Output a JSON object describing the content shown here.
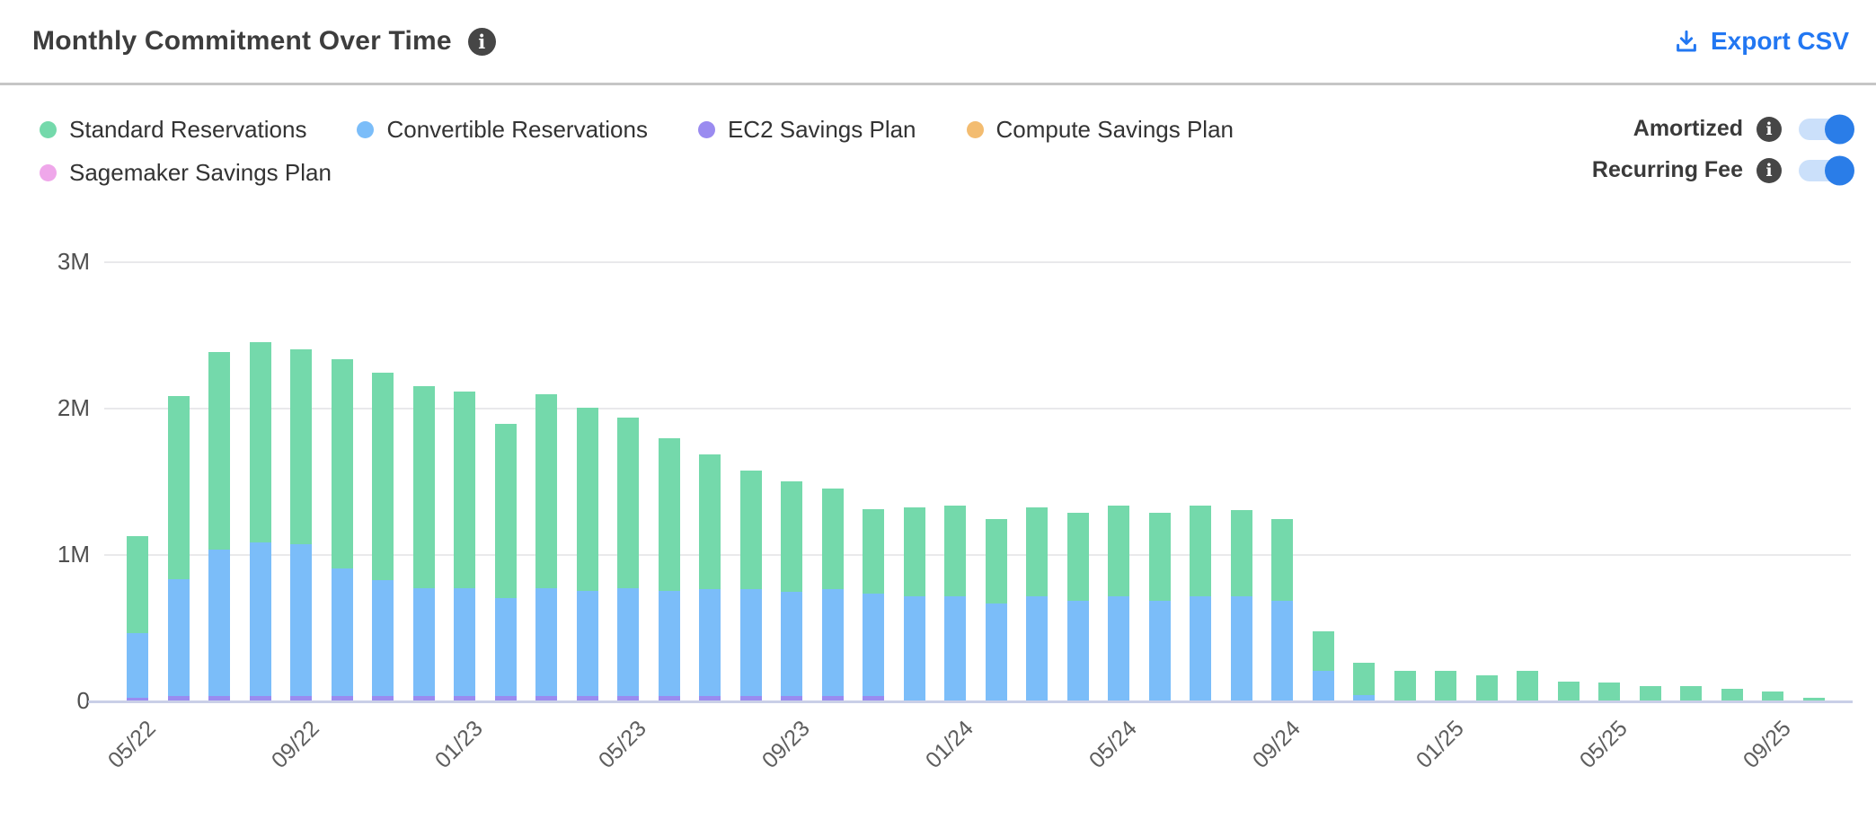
{
  "header": {
    "title": "Monthly Commitment Over Time",
    "export_label": "Export CSV"
  },
  "toggles": [
    {
      "label": "Amortized",
      "state": "on"
    },
    {
      "label": "Recurring Fee",
      "state": "on"
    }
  ],
  "colors": {
    "accent_blue": "#2277f2",
    "toggle_knob": "#2a7de8",
    "toggle_track": "#cbe0fa",
    "info_badge": "#464646",
    "gridline": "#e9e9eb",
    "axis_line": "#c9cfe7"
  },
  "chart_data": {
    "type": "bar",
    "stacked": true,
    "values_unit": "millions",
    "ylim": [
      0,
      3
    ],
    "grid": "horizontal",
    "legend_position": "top-left",
    "y_axis": {
      "ticks": [
        {
          "v": 3,
          "label": "3M"
        },
        {
          "v": 2,
          "label": "2M"
        },
        {
          "v": 1,
          "label": "1M"
        },
        {
          "v": 0,
          "label": "0"
        }
      ]
    },
    "x": [
      "05/22",
      "06/22",
      "07/22",
      "08/22",
      "09/22",
      "10/22",
      "11/22",
      "12/22",
      "01/23",
      "02/23",
      "03/23",
      "04/23",
      "05/23",
      "06/23",
      "07/23",
      "08/23",
      "09/23",
      "10/23",
      "11/23",
      "12/23",
      "01/24",
      "02/24",
      "03/24",
      "04/24",
      "05/24",
      "06/24",
      "07/24",
      "08/24",
      "09/24",
      "10/24",
      "11/24",
      "12/24",
      "01/25",
      "02/25",
      "03/25",
      "04/25",
      "05/25",
      "06/25",
      "07/25",
      "08/25",
      "09/25",
      "10/25"
    ],
    "x_tick_indices": [
      0,
      4,
      8,
      12,
      16,
      20,
      24,
      28,
      32,
      36,
      40
    ],
    "series": [
      {
        "name": "Standard Reservations",
        "key": "standard_reservations",
        "color": "#74d9ab",
        "values": [
          0.66,
          1.25,
          1.35,
          1.37,
          1.33,
          1.43,
          1.42,
          1.38,
          1.34,
          1.19,
          1.32,
          1.25,
          1.16,
          1.04,
          0.92,
          0.81,
          0.76,
          0.69,
          0.58,
          0.61,
          0.62,
          0.58,
          0.61,
          0.6,
          0.62,
          0.6,
          0.62,
          0.59,
          0.56,
          0.27,
          0.22,
          0.2,
          0.2,
          0.17,
          0.2,
          0.13,
          0.12,
          0.1,
          0.1,
          0.08,
          0.06,
          0.02
        ]
      },
      {
        "name": "Convertible Reservations",
        "key": "convertible_reservations",
        "color": "#7bbdf9",
        "values": [
          0.44,
          0.8,
          1.0,
          1.05,
          1.04,
          0.87,
          0.79,
          0.74,
          0.74,
          0.67,
          0.74,
          0.72,
          0.74,
          0.72,
          0.73,
          0.73,
          0.71,
          0.73,
          0.7,
          0.71,
          0.71,
          0.66,
          0.71,
          0.68,
          0.71,
          0.68,
          0.71,
          0.71,
          0.68,
          0.2,
          0.04,
          0,
          0,
          0,
          0,
          0,
          0,
          0,
          0,
          0,
          0,
          0
        ]
      },
      {
        "name": "EC2 Savings Plan",
        "key": "ec2_savings_plan",
        "color": "#9a8bf0",
        "values": [
          0.02,
          0.03,
          0.03,
          0.03,
          0.03,
          0.03,
          0.03,
          0.03,
          0.03,
          0.03,
          0.03,
          0.03,
          0.03,
          0.03,
          0.03,
          0.03,
          0.03,
          0.03,
          0.03,
          0,
          0,
          0,
          0,
          0,
          0,
          0,
          0,
          0,
          0,
          0,
          0,
          0,
          0,
          0,
          0,
          0,
          0,
          0,
          0,
          0,
          0,
          0
        ]
      },
      {
        "name": "Compute Savings Plan",
        "key": "compute_savings_plan",
        "color": "#f3bc70",
        "values": [
          0,
          0,
          0,
          0,
          0,
          0,
          0,
          0,
          0,
          0,
          0,
          0,
          0,
          0,
          0,
          0,
          0,
          0,
          0,
          0,
          0,
          0,
          0,
          0,
          0,
          0,
          0,
          0,
          0,
          0,
          0,
          0,
          0,
          0,
          0,
          0,
          0,
          0,
          0,
          0,
          0,
          0
        ]
      },
      {
        "name": "Sagemaker Savings Plan",
        "key": "sagemaker_savings_plan",
        "color": "#efa7ea",
        "values": [
          0,
          0,
          0,
          0,
          0,
          0,
          0,
          0,
          0,
          0,
          0,
          0,
          0,
          0,
          0,
          0,
          0,
          0,
          0,
          0,
          0,
          0,
          0,
          0,
          0,
          0,
          0,
          0,
          0,
          0,
          0,
          0,
          0,
          0,
          0,
          0,
          0,
          0,
          0,
          0,
          0,
          0
        ]
      }
    ]
  }
}
